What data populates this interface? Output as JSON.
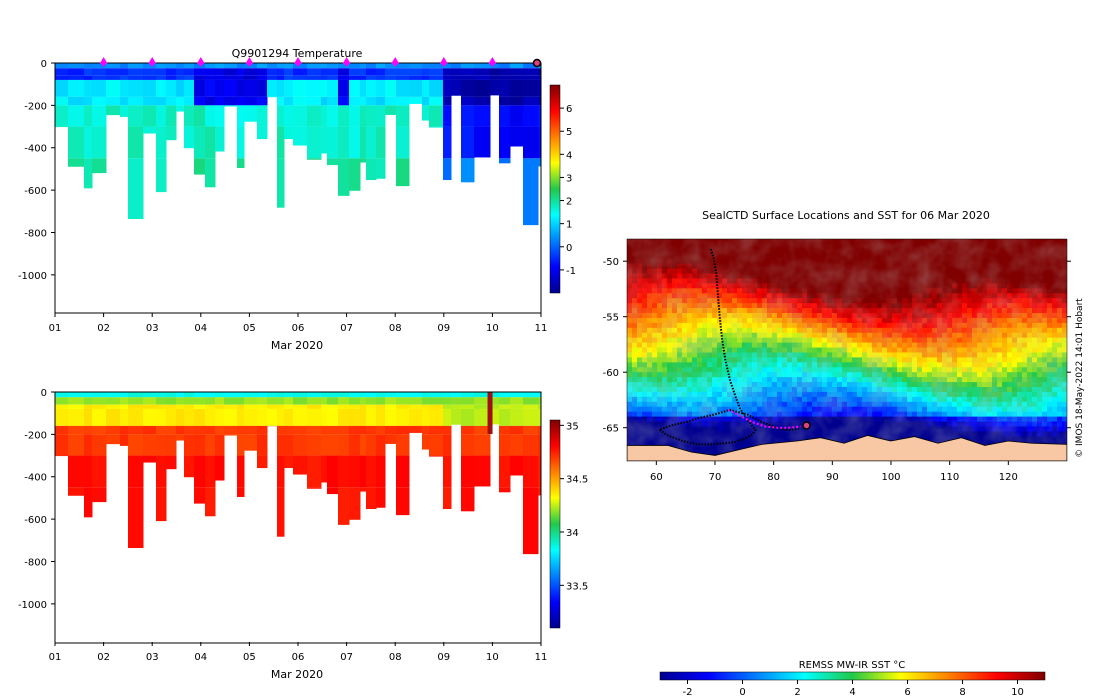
{
  "chart_data": [
    {
      "id": "temperature",
      "type": "heatmap",
      "title": "Q9901294  Temperature",
      "xlabel": "Mar 2020",
      "x_ticks": [
        "01",
        "02",
        "03",
        "04",
        "05",
        "06",
        "07",
        "08",
        "09",
        "10",
        "11"
      ],
      "y_ticks": [
        0,
        -200,
        -400,
        -600,
        -800,
        -1000
      ],
      "ylim": [
        -1180,
        0
      ],
      "colorbar": {
        "min": -2,
        "max": 7,
        "ticks": [
          6,
          5,
          4,
          3,
          2,
          1,
          0,
          -1
        ]
      },
      "surface_marker_days": [
        2,
        3,
        4,
        5,
        6,
        7,
        8,
        9,
        10
      ],
      "current_position_day": 11,
      "colors": {
        "marker": "#ff00ff",
        "current": "#e0407f"
      }
    },
    {
      "id": "salinity",
      "type": "heatmap",
      "title": "",
      "xlabel": "Mar 2020",
      "x_ticks": [
        "01",
        "02",
        "03",
        "04",
        "05",
        "06",
        "07",
        "08",
        "09",
        "10",
        "11"
      ],
      "y_ticks": [
        0,
        -200,
        -400,
        -600,
        -800,
        -1000
      ],
      "ylim": [
        -1180,
        0
      ],
      "colorbar": {
        "min": 33.1,
        "max": 35.05,
        "ticks": [
          "35",
          "34.5",
          "34",
          "33.5"
        ]
      }
    },
    {
      "id": "sst_map",
      "type": "heatmap",
      "title": "SealCTD Surface Locations and SST for 06 Mar 2020",
      "x_ticks": [
        60,
        70,
        80,
        90,
        100,
        110,
        120
      ],
      "y_ticks": [
        -50,
        -55,
        -60,
        -65
      ],
      "xlim": [
        55,
        130
      ],
      "ylim": [
        -68,
        -48
      ],
      "colorbar": {
        "label": "REMSS MW-IR SST °C",
        "min": -3,
        "max": 11,
        "ticks": [
          -2,
          0,
          2,
          4,
          6,
          8,
          10
        ]
      },
      "track": [
        [
          69.3,
          -48.9
        ],
        [
          69.8,
          -49.8
        ],
        [
          70.2,
          -51
        ],
        [
          70.5,
          -53
        ],
        [
          70.8,
          -55
        ],
        [
          71.2,
          -57
        ],
        [
          71.8,
          -59
        ],
        [
          72.6,
          -60.8
        ],
        [
          73.5,
          -62.2
        ],
        [
          74.2,
          -63.2
        ],
        [
          75.1,
          -64
        ],
        [
          76,
          -64.6
        ],
        [
          76.9,
          -65.2
        ],
        [
          76.4,
          -65.6
        ],
        [
          75,
          -66
        ],
        [
          73.4,
          -66.3
        ],
        [
          71.5,
          -66.4
        ],
        [
          69.5,
          -66.5
        ],
        [
          67,
          -66.5
        ],
        [
          64.5,
          -66.2
        ],
        [
          62,
          -65.7
        ],
        [
          60.5,
          -65.2
        ],
        [
          62.5,
          -64.8
        ],
        [
          65,
          -64.5
        ],
        [
          67.5,
          -64.1
        ],
        [
          70,
          -63.8
        ],
        [
          72.5,
          -63.4
        ],
        [
          75.5,
          -63.8
        ],
        [
          78,
          -64.5
        ],
        [
          80.5,
          -65
        ],
        [
          82.5,
          -65.2
        ],
        [
          84.3,
          -65.1
        ]
      ],
      "recent_track": [
        [
          72.2,
          -63.4
        ],
        [
          74.2,
          -63.9
        ],
        [
          76.4,
          -64.5
        ],
        [
          78.6,
          -64.9
        ],
        [
          80.6,
          -65.0
        ],
        [
          82.6,
          -65.0
        ],
        [
          84.6,
          -64.9
        ]
      ],
      "current_position": [
        85.6,
        -64.8
      ],
      "colors": {
        "land": "#f7c8a3",
        "track": "#000000",
        "recent": "#ff00ff"
      }
    }
  ],
  "credit": "© IMOS 18-May-2022 14:01 Hobart"
}
